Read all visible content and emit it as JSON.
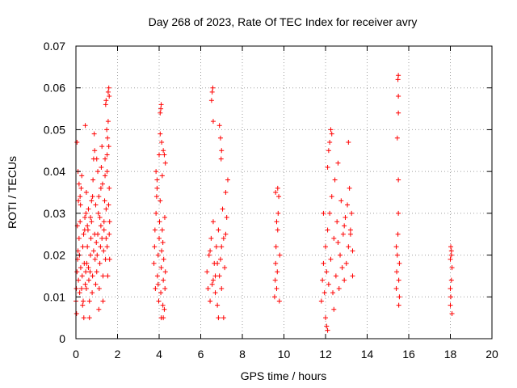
{
  "chart_data": {
    "type": "scatter",
    "title": "Day 268 of 2023, Rate Of TEC Index for receiver avry",
    "xlabel": "GPS time / hours",
    "ylabel": "ROTI / TECUs",
    "xlim": [
      0,
      20
    ],
    "ylim": [
      0,
      0.07
    ],
    "xticks": [
      0,
      2,
      4,
      6,
      8,
      10,
      12,
      14,
      16,
      18,
      20
    ],
    "xtick_labels": [
      "0",
      "2",
      "4",
      "6",
      "8",
      "10",
      "12",
      "14",
      "16",
      "18",
      "20"
    ],
    "yticks": [
      0,
      0.01,
      0.02,
      0.03,
      0.04,
      0.05,
      0.06,
      0.07
    ],
    "ytick_labels": [
      "0",
      "0.01",
      "0.02",
      "0.03",
      "0.04",
      "0.05",
      "0.06",
      "0.07"
    ],
    "grid": true,
    "marker": "+",
    "color": "#ff0000",
    "series": [
      {
        "name": "ROTI",
        "points": [
          [
            0.0,
            0.009
          ],
          [
            0.02,
            0.012
          ],
          [
            0.05,
            0.016
          ],
          [
            0.08,
            0.019
          ],
          [
            0.1,
            0.021
          ],
          [
            0.12,
            0.014
          ],
          [
            0.15,
            0.024
          ],
          [
            0.18,
            0.011
          ],
          [
            0.2,
            0.028
          ],
          [
            0.22,
            0.032
          ],
          [
            0.25,
            0.036
          ],
          [
            0.28,
            0.039
          ],
          [
            0.3,
            0.015
          ],
          [
            0.33,
            0.022
          ],
          [
            0.35,
            0.009
          ],
          [
            0.38,
            0.005
          ],
          [
            0.4,
            0.018
          ],
          [
            0.42,
            0.026
          ],
          [
            0.45,
            0.013
          ],
          [
            0.48,
            0.03
          ],
          [
            0.05,
            0.047
          ],
          [
            0.1,
            0.04
          ],
          [
            0.15,
            0.037
          ],
          [
            0.2,
            0.034
          ],
          [
            0.03,
            0.006
          ],
          [
            0.07,
            0.027
          ],
          [
            0.12,
            0.033
          ],
          [
            0.17,
            0.02
          ],
          [
            0.23,
            0.017
          ],
          [
            0.27,
            0.012
          ],
          [
            0.32,
            0.008
          ],
          [
            0.37,
            0.025
          ],
          [
            0.43,
            0.029
          ],
          [
            0.47,
            0.016
          ],
          [
            0.5,
            0.012
          ],
          [
            0.52,
            0.018
          ],
          [
            0.55,
            0.022
          ],
          [
            0.58,
            0.026
          ],
          [
            0.6,
            0.031
          ],
          [
            0.62,
            0.014
          ],
          [
            0.65,
            0.009
          ],
          [
            0.68,
            0.016
          ],
          [
            0.7,
            0.02
          ],
          [
            0.72,
            0.024
          ],
          [
            0.75,
            0.028
          ],
          [
            0.78,
            0.011
          ],
          [
            0.8,
            0.034
          ],
          [
            0.82,
            0.038
          ],
          [
            0.85,
            0.043
          ],
          [
            0.88,
            0.049
          ],
          [
            0.9,
            0.045
          ],
          [
            0.92,
            0.019
          ],
          [
            0.95,
            0.013
          ],
          [
            0.98,
            0.023
          ],
          [
            0.45,
            0.051
          ],
          [
            0.5,
            0.035
          ],
          [
            0.55,
            0.027
          ],
          [
            0.6,
            0.017
          ],
          [
            0.65,
            0.005
          ],
          [
            0.7,
            0.029
          ],
          [
            0.75,
            0.033
          ],
          [
            0.8,
            0.015
          ],
          [
            0.85,
            0.021
          ],
          [
            0.9,
            0.025
          ],
          [
            0.95,
            0.032
          ],
          [
            1.0,
            0.016
          ],
          [
            1.02,
            0.02
          ],
          [
            1.05,
            0.025
          ],
          [
            1.08,
            0.03
          ],
          [
            1.1,
            0.034
          ],
          [
            1.12,
            0.012
          ],
          [
            1.15,
            0.018
          ],
          [
            1.18,
            0.022
          ],
          [
            1.2,
            0.027
          ],
          [
            1.22,
            0.041
          ],
          [
            1.25,
            0.046
          ],
          [
            1.28,
            0.037
          ],
          [
            1.3,
            0.015
          ],
          [
            1.33,
            0.021
          ],
          [
            1.35,
            0.028
          ],
          [
            1.38,
            0.033
          ],
          [
            1.4,
            0.039
          ],
          [
            1.42,
            0.019
          ],
          [
            1.45,
            0.024
          ],
          [
            1.48,
            0.05
          ],
          [
            1.0,
            0.043
          ],
          [
            1.05,
            0.04
          ],
          [
            1.1,
            0.007
          ],
          [
            1.15,
            0.029
          ],
          [
            1.2,
            0.036
          ],
          [
            1.25,
            0.024
          ],
          [
            1.3,
            0.009
          ],
          [
            1.35,
            0.026
          ],
          [
            1.4,
            0.043
          ],
          [
            1.45,
            0.031
          ],
          [
            1.5,
            0.044
          ],
          [
            1.52,
            0.048
          ],
          [
            1.55,
            0.052
          ],
          [
            1.58,
            0.046
          ],
          [
            1.6,
            0.036
          ],
          [
            1.62,
            0.028
          ],
          [
            1.55,
            0.059
          ],
          [
            1.58,
            0.06
          ],
          [
            1.6,
            0.058
          ],
          [
            1.45,
            0.057
          ],
          [
            1.43,
            0.056
          ],
          [
            1.5,
            0.022
          ],
          [
            1.53,
            0.015
          ],
          [
            1.57,
            0.032
          ],
          [
            1.62,
            0.019
          ],
          [
            1.5,
            0.04
          ],
          [
            1.6,
            0.025
          ],
          [
            3.75,
            0.018
          ],
          [
            3.78,
            0.022
          ],
          [
            3.8,
            0.026
          ],
          [
            3.82,
            0.012
          ],
          [
            3.85,
            0.03
          ],
          [
            3.88,
            0.034
          ],
          [
            3.9,
            0.038
          ],
          [
            3.92,
            0.015
          ],
          [
            3.95,
            0.02
          ],
          [
            3.98,
            0.009
          ],
          [
            4.0,
            0.024
          ],
          [
            4.02,
            0.028
          ],
          [
            4.05,
            0.033
          ],
          [
            4.08,
            0.011
          ],
          [
            4.1,
            0.017
          ],
          [
            4.12,
            0.021
          ],
          [
            4.15,
            0.026
          ],
          [
            4.18,
            0.008
          ],
          [
            4.2,
            0.014
          ],
          [
            4.22,
            0.019
          ],
          [
            4.25,
            0.007
          ],
          [
            4.28,
            0.012
          ],
          [
            4.3,
            0.016
          ],
          [
            3.85,
            0.04
          ],
          [
            3.9,
            0.036
          ],
          [
            4.0,
            0.044
          ],
          [
            4.05,
            0.049
          ],
          [
            4.08,
            0.055
          ],
          [
            4.1,
            0.056
          ],
          [
            4.05,
            0.054
          ],
          [
            4.12,
            0.047
          ],
          [
            4.2,
            0.045
          ],
          [
            4.25,
            0.044
          ],
          [
            4.3,
            0.042
          ],
          [
            4.15,
            0.039
          ],
          [
            4.1,
            0.005
          ],
          [
            4.2,
            0.005
          ],
          [
            3.95,
            0.013
          ],
          [
            4.18,
            0.023
          ],
          [
            4.27,
            0.029
          ],
          [
            6.3,
            0.016
          ],
          [
            6.35,
            0.012
          ],
          [
            6.4,
            0.02
          ],
          [
            6.45,
            0.009
          ],
          [
            6.5,
            0.024
          ],
          [
            6.55,
            0.013
          ],
          [
            6.6,
            0.028
          ],
          [
            6.65,
            0.018
          ],
          [
            6.7,
            0.011
          ],
          [
            6.75,
            0.022
          ],
          [
            6.8,
            0.008
          ],
          [
            6.85,
            0.026
          ],
          [
            6.9,
            0.015
          ],
          [
            6.95,
            0.019
          ],
          [
            7.0,
            0.012
          ],
          [
            7.05,
            0.031
          ],
          [
            7.1,
            0.024
          ],
          [
            7.15,
            0.017
          ],
          [
            7.2,
            0.035
          ],
          [
            7.25,
            0.029
          ],
          [
            7.3,
            0.038
          ],
          [
            6.6,
            0.052
          ],
          [
            6.55,
            0.059
          ],
          [
            6.58,
            0.06
          ],
          [
            6.52,
            0.057
          ],
          [
            6.9,
            0.051
          ],
          [
            6.95,
            0.048
          ],
          [
            7.0,
            0.045
          ],
          [
            6.98,
            0.043
          ],
          [
            6.85,
            0.005
          ],
          [
            7.1,
            0.005
          ],
          [
            6.7,
            0.015
          ],
          [
            7.0,
            0.022
          ],
          [
            6.6,
            0.014
          ],
          [
            7.2,
            0.025
          ],
          [
            6.45,
            0.021
          ],
          [
            6.8,
            0.018
          ],
          [
            9.55,
            0.01
          ],
          [
            9.58,
            0.014
          ],
          [
            9.6,
            0.018
          ],
          [
            9.62,
            0.022
          ],
          [
            9.65,
            0.012
          ],
          [
            9.68,
            0.016
          ],
          [
            9.7,
            0.026
          ],
          [
            9.72,
            0.03
          ],
          [
            9.75,
            0.034
          ],
          [
            9.78,
            0.009
          ],
          [
            9.8,
            0.02
          ],
          [
            9.6,
            0.035
          ],
          [
            9.7,
            0.036
          ],
          [
            9.65,
            0.028
          ],
          [
            11.8,
            0.009
          ],
          [
            11.85,
            0.014
          ],
          [
            11.9,
            0.018
          ],
          [
            11.95,
            0.011
          ],
          [
            12.0,
            0.022
          ],
          [
            12.05,
            0.016
          ],
          [
            12.1,
            0.026
          ],
          [
            12.15,
            0.013
          ],
          [
            12.2,
            0.03
          ],
          [
            12.25,
            0.019
          ],
          [
            12.3,
            0.034
          ],
          [
            12.35,
            0.011
          ],
          [
            12.4,
            0.024
          ],
          [
            12.45,
            0.038
          ],
          [
            12.5,
            0.015
          ],
          [
            12.55,
            0.028
          ],
          [
            12.6,
            0.042
          ],
          [
            12.65,
            0.012
          ],
          [
            12.7,
            0.02
          ],
          [
            12.75,
            0.033
          ],
          [
            12.8,
            0.017
          ],
          [
            12.85,
            0.025
          ],
          [
            12.9,
            0.014
          ],
          [
            12.95,
            0.029
          ],
          [
            13.0,
            0.018
          ],
          [
            13.05,
            0.032
          ],
          [
            13.1,
            0.022
          ],
          [
            13.15,
            0.036
          ],
          [
            13.2,
            0.025
          ],
          [
            13.25,
            0.03
          ],
          [
            13.3,
            0.015
          ],
          [
            12.05,
            0.003
          ],
          [
            12.0,
            0.005
          ],
          [
            12.1,
            0.002
          ],
          [
            12.2,
            0.047
          ],
          [
            12.25,
            0.05
          ],
          [
            12.3,
            0.049
          ],
          [
            12.15,
            0.045
          ],
          [
            12.1,
            0.041
          ],
          [
            13.1,
            0.047
          ],
          [
            13.2,
            0.026
          ],
          [
            12.6,
            0.023
          ],
          [
            12.9,
            0.027
          ],
          [
            13.3,
            0.021
          ],
          [
            11.9,
            0.03
          ],
          [
            12.4,
            0.007
          ],
          [
            15.4,
            0.012
          ],
          [
            15.42,
            0.016
          ],
          [
            15.45,
            0.02
          ],
          [
            15.48,
            0.025
          ],
          [
            15.5,
            0.03
          ],
          [
            15.52,
            0.014
          ],
          [
            15.55,
            0.01
          ],
          [
            15.5,
            0.038
          ],
          [
            15.45,
            0.048
          ],
          [
            15.5,
            0.054
          ],
          [
            15.5,
            0.058
          ],
          [
            15.48,
            0.062
          ],
          [
            15.5,
            0.063
          ],
          [
            15.55,
            0.018
          ],
          [
            15.4,
            0.022
          ],
          [
            15.52,
            0.008
          ],
          [
            18.0,
            0.008
          ],
          [
            18.02,
            0.01
          ],
          [
            18.05,
            0.014
          ],
          [
            18.08,
            0.017
          ],
          [
            18.0,
            0.019
          ],
          [
            18.05,
            0.021
          ],
          [
            18.02,
            0.022
          ],
          [
            18.0,
            0.012
          ],
          [
            18.08,
            0.006
          ],
          [
            18.05,
            0.02
          ]
        ]
      }
    ]
  }
}
